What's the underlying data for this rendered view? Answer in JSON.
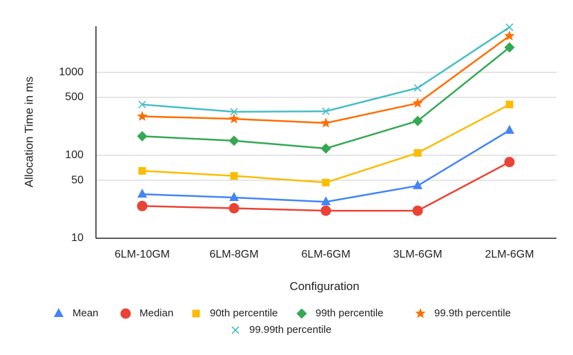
{
  "chart_data": {
    "type": "line",
    "title": "",
    "xlabel": "Configuration",
    "ylabel": "Allocation Time in ms",
    "yscale": "log",
    "ylim": [
      10,
      3600
    ],
    "yticks": [
      10,
      50,
      100,
      500,
      1000
    ],
    "ytick_labels": [
      "10",
      "50",
      "100",
      "500",
      "1000"
    ],
    "grid": true,
    "legend_position": "bottom",
    "categories": [
      "6LM-10GM",
      "6LM-8GM",
      "6LM-6GM",
      "3LM-6GM",
      "2LM-6GM"
    ],
    "series": [
      {
        "name": "Mean",
        "marker": "triangle",
        "color": "#4285F4",
        "values": [
          34,
          31,
          27.5,
          43,
          200
        ]
      },
      {
        "name": "Median",
        "marker": "circle",
        "color": "#EA4335",
        "values": [
          24.5,
          23,
          21.5,
          21.5,
          83
        ]
      },
      {
        "name": "90th percentile",
        "marker": "square",
        "color": "#FBBC04",
        "values": [
          65,
          56.5,
          47,
          107,
          410
        ]
      },
      {
        "name": "99th percentile",
        "marker": "diamond",
        "color": "#34A853",
        "values": [
          170,
          150,
          121,
          260,
          2000
        ]
      },
      {
        "name": "99.9th percentile",
        "marker": "star",
        "color": "#FF6D01",
        "values": [
          295,
          275,
          245,
          425,
          2750
        ]
      },
      {
        "name": "99.99th percentile",
        "marker": "x",
        "color": "#46BDC6",
        "values": [
          410,
          335,
          340,
          650,
          3500
        ]
      }
    ]
  }
}
